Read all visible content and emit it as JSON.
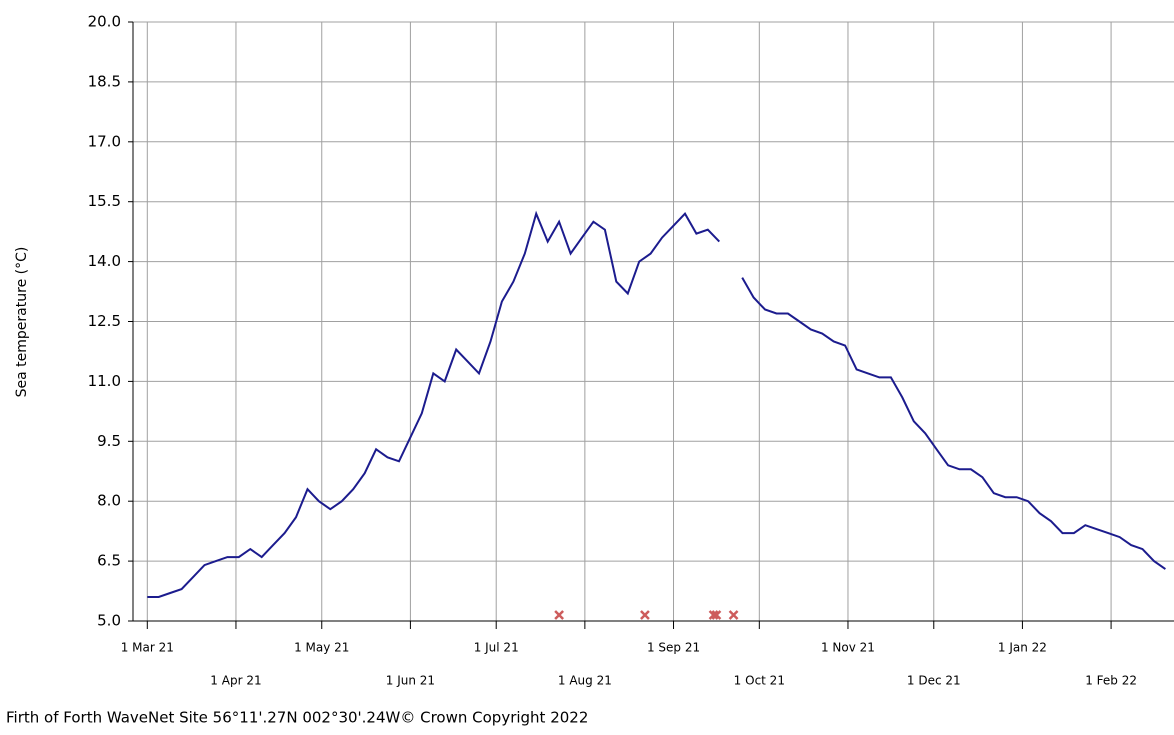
{
  "chart_data": {
    "type": "line",
    "ylabel": "Sea temperature (°C)",
    "footer": "Firth of Forth WaveNet Site 56°11'.27N 002°30'.24W© Crown Copyright 2022",
    "xlim": [
      "2021-02-24",
      "2022-02-23"
    ],
    "xticks": [
      {
        "value": "2021-03-01",
        "label": "1 Mar 21"
      },
      {
        "value": "2021-04-01",
        "label": "1 Apr 21"
      },
      {
        "value": "2021-05-01",
        "label": "1 May 21"
      },
      {
        "value": "2021-06-01",
        "label": "1 Jun 21"
      },
      {
        "value": "2021-07-01",
        "label": "1 Jul 21"
      },
      {
        "value": "2021-08-01",
        "label": "1 Aug 21"
      },
      {
        "value": "2021-09-01",
        "label": "1 Sep 21"
      },
      {
        "value": "2021-10-01",
        "label": "1 Oct 21"
      },
      {
        "value": "2021-11-01",
        "label": "1 Nov 21"
      },
      {
        "value": "2021-12-01",
        "label": "1 Dec 21"
      },
      {
        "value": "2022-01-01",
        "label": "1 Jan 22"
      },
      {
        "value": "2022-02-01",
        "label": "1 Feb 22"
      }
    ],
    "ylim": [
      5,
      20
    ],
    "yticks": [
      {
        "value": 5,
        "label": "5.0"
      },
      {
        "value": 6.5,
        "label": "6.5"
      },
      {
        "value": 8,
        "label": "8.0"
      },
      {
        "value": 9.5,
        "label": "9.5"
      },
      {
        "value": 11,
        "label": "11.0"
      },
      {
        "value": 12.5,
        "label": "12.5"
      },
      {
        "value": 14,
        "label": "14.0"
      },
      {
        "value": 15.5,
        "label": "15.5"
      },
      {
        "value": 17,
        "label": "17.0"
      },
      {
        "value": 18.5,
        "label": "18.5"
      },
      {
        "value": 20,
        "label": "20.0"
      }
    ],
    "grid": true,
    "series": [
      {
        "color": "#1c1c8e",
        "kind": "line",
        "x": [
          "2021-03-01",
          "2021-03-05",
          "2021-03-09",
          "2021-03-13",
          "2021-03-17",
          "2021-03-21",
          "2021-03-25",
          "2021-03-29",
          "2021-04-02",
          "2021-04-06",
          "2021-04-10",
          "2021-04-14",
          "2021-04-18",
          "2021-04-22",
          "2021-04-26",
          "2021-04-30",
          "2021-05-04",
          "2021-05-08",
          "2021-05-12",
          "2021-05-16",
          "2021-05-20",
          "2021-05-24",
          "2021-05-28",
          "2021-06-01",
          "2021-06-05",
          "2021-06-09",
          "2021-06-13",
          "2021-06-17",
          "2021-06-21",
          "2021-06-25",
          "2021-06-29",
          "2021-07-03",
          "2021-07-07",
          "2021-07-11",
          "2021-07-15",
          "2021-07-19",
          "2021-07-23",
          "2021-07-27",
          "2021-07-31",
          "2021-08-04",
          "2021-08-08",
          "2021-08-12",
          "2021-08-16",
          "2021-08-20",
          "2021-08-24",
          "2021-08-28",
          "2021-09-01",
          "2021-09-05",
          "2021-09-09",
          "2021-09-13",
          "2021-09-17",
          "2021-09-21",
          "2021-09-25",
          "2021-09-29",
          "2021-10-03",
          "2021-10-07",
          "2021-10-11",
          "2021-10-15",
          "2021-10-19",
          "2021-10-23",
          "2021-10-27",
          "2021-10-31",
          "2021-11-04",
          "2021-11-08",
          "2021-11-12",
          "2021-11-16",
          "2021-11-20",
          "2021-11-24",
          "2021-11-28",
          "2021-12-02",
          "2021-12-06",
          "2021-12-10",
          "2021-12-14",
          "2021-12-18",
          "2021-12-22",
          "2021-12-26",
          "2021-12-30",
          "2022-01-03",
          "2022-01-07",
          "2022-01-11",
          "2022-01-15",
          "2022-01-19",
          "2022-01-23",
          "2022-01-27",
          "2022-01-31",
          "2022-02-04",
          "2022-02-08",
          "2022-02-12",
          "2022-02-16",
          "2022-02-20"
        ],
        "values": [
          5.6,
          5.6,
          5.7,
          5.8,
          6.1,
          6.4,
          6.5,
          6.6,
          6.6,
          6.8,
          6.6,
          6.9,
          7.2,
          7.6,
          8.3,
          8.0,
          7.8,
          8.0,
          8.3,
          8.7,
          9.3,
          9.1,
          9.0,
          9.6,
          10.2,
          11.2,
          11.0,
          11.8,
          11.5,
          11.2,
          12.0,
          13.0,
          13.5,
          14.2,
          15.2,
          14.5,
          15.0,
          14.2,
          14.6,
          15.0,
          14.8,
          13.5,
          13.2,
          14.0,
          14.2,
          14.6,
          14.9,
          15.2,
          14.7,
          14.8,
          14.5,
          null,
          13.6,
          13.1,
          12.8,
          12.7,
          12.7,
          12.5,
          12.3,
          12.2,
          12.0,
          11.9,
          11.3,
          11.2,
          11.1,
          11.1,
          10.6,
          10.0,
          9.7,
          9.3,
          8.9,
          8.8,
          8.8,
          8.6,
          8.2,
          8.1,
          8.1,
          8.0,
          7.7,
          7.5,
          7.2,
          7.2,
          7.4,
          7.3,
          7.2,
          7.1,
          6.9,
          6.8,
          6.5,
          6.3
        ]
      },
      {
        "color": "#cd5c5c",
        "kind": "markers",
        "x": [
          "2021-07-23",
          "2021-08-22",
          "2021-09-15",
          "2021-09-16",
          "2021-09-22"
        ],
        "values": [
          5.15,
          5.15,
          5.15,
          5.15,
          5.15
        ]
      }
    ]
  }
}
